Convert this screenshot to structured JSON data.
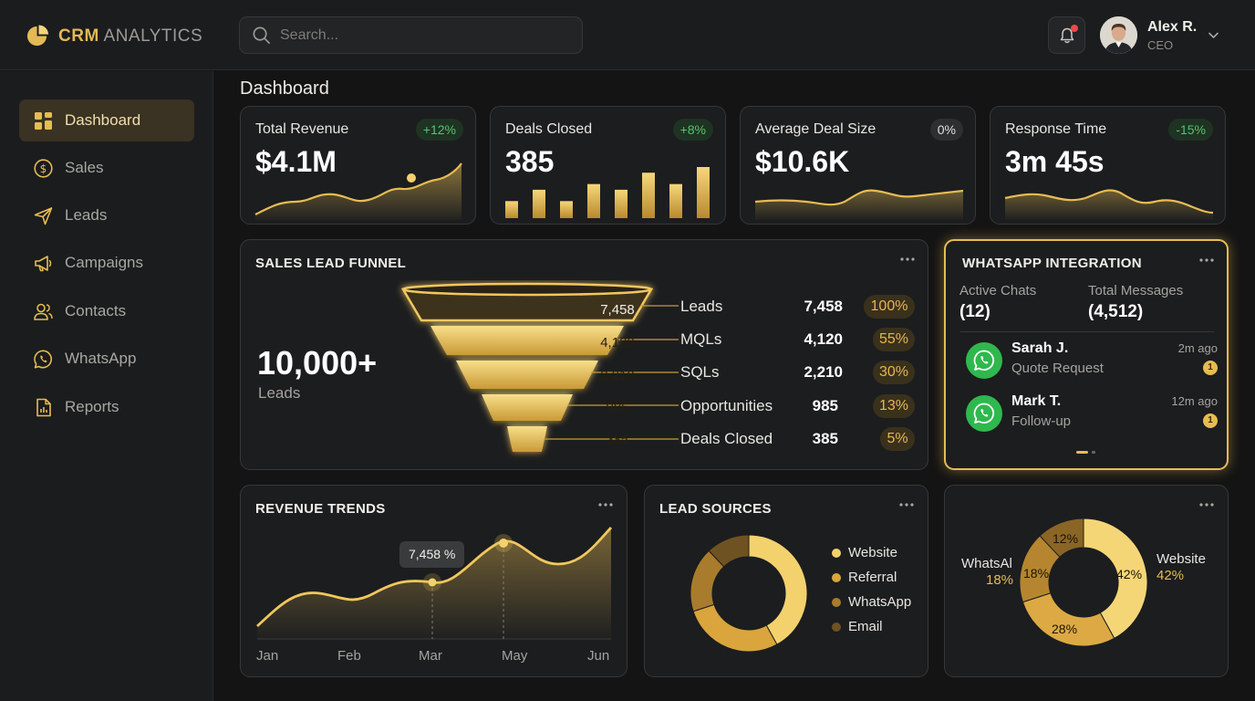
{
  "app": {
    "logo_bold": "CRM",
    "logo_light": "ANALYTICS",
    "accent": "#e6bc52"
  },
  "header": {
    "search_placeholder": "Search...",
    "user": {
      "name": "Alex R.",
      "role": "CEO"
    },
    "icons": [
      "search-icon",
      "bell-icon",
      "avatar",
      "chevron-down-icon"
    ]
  },
  "sidebar": {
    "items": [
      {
        "label": "Dashboard",
        "icon": "grid-icon",
        "active": true
      },
      {
        "label": "Sales",
        "icon": "dollar-icon"
      },
      {
        "label": "Leads",
        "icon": "send-icon"
      },
      {
        "label": "Campaigns",
        "icon": "megaphone-icon"
      },
      {
        "label": "Contacts",
        "icon": "users-icon"
      },
      {
        "label": "WhatsApp",
        "icon": "whatsapp-icon"
      },
      {
        "label": "Reports",
        "icon": "report-icon"
      }
    ]
  },
  "page": {
    "title": "Dashboard"
  },
  "kpis": [
    {
      "label": "Total Revenue",
      "value": "$4.1M",
      "change": "+12%"
    },
    {
      "label": "Deals Closed",
      "value": "385",
      "change": "+8%",
      "bars": [
        3,
        5,
        3,
        6,
        5,
        8,
        6,
        9
      ]
    },
    {
      "label": "Average Deal Size",
      "value": "$10.6K",
      "change": "0%"
    },
    {
      "label": "Response Time",
      "value": "3m 45s",
      "change": "-15%"
    }
  ],
  "funnel": {
    "title": "SALES LEAD FUNNEL",
    "total": "10,000+",
    "total_label": "Leads",
    "stages": [
      {
        "name": "Leads",
        "value": "7,458",
        "pct": "100%"
      },
      {
        "name": "MQLs",
        "value": "4,120",
        "pct": "55%"
      },
      {
        "name": "SQLs",
        "value": "2,210",
        "pct": "30%"
      },
      {
        "name": "Opportunities",
        "value": "985",
        "pct": "13%"
      },
      {
        "name": "Deals Closed",
        "value": "385",
        "pct": "5%"
      }
    ]
  },
  "whatsapp": {
    "title": "WHATSAPP INTEGRATION",
    "active_chats_label": "Active Chats",
    "active_chats_value": "(12)",
    "total_messages_label": "Total Messages",
    "total_messages_value": "(4,512)",
    "chats": [
      {
        "name": "Sarah J.",
        "message": "Quote Request",
        "time": "2m ago",
        "unread": "1"
      },
      {
        "name": "Mark T.",
        "message": "Follow-up",
        "time": "12m ago",
        "unread": "1"
      }
    ]
  },
  "revenue_trends": {
    "title": "REVENUE TRENDS",
    "months": [
      "Jan",
      "Feb",
      "Mar",
      "May",
      "Jun"
    ],
    "tooltip": "7,458 %"
  },
  "lead_sources": {
    "title": "LEAD SOURCES",
    "legend": [
      {
        "label": "Website",
        "color": "#f3d16d"
      },
      {
        "label": "Referral",
        "color": "#d9a53c"
      },
      {
        "label": "WhatsApp",
        "color": "#a87c2c"
      },
      {
        "label": "Email",
        "color": "#6f5222"
      }
    ]
  },
  "source_breakdown": {
    "outer_labels": [
      {
        "label": "WhatsAl",
        "pct": "18%"
      },
      {
        "label": "Website",
        "pct": "42%"
      }
    ],
    "inner": [
      "12%",
      "18%",
      "42%",
      "28%"
    ]
  },
  "chart_data": [
    {
      "type": "line",
      "title": "",
      "x": [
        "Jan",
        "Feb",
        "Mar",
        "May",
        "Jun"
      ],
      "series": [
        {
          "values": [
            2500,
            5200,
            5400,
            7458,
            10500
          ]
        }
      ],
      "annotations": [
        "7,458 %"
      ],
      "grid": false
    },
    {
      "type": "pie",
      "title": "",
      "categories": [
        "Website",
        "Referral",
        "WhatsApp",
        "Email"
      ],
      "values": [
        42,
        28,
        18,
        12
      ]
    },
    {
      "type": "pie",
      "title": "",
      "categories": [
        "Website",
        "Referral",
        "WhatsApp",
        "Email"
      ],
      "values": [
        42,
        28,
        18,
        12
      ]
    },
    {
      "type": "bar",
      "title": "",
      "categories": [
        "1",
        "2",
        "3",
        "4",
        "5",
        "6",
        "7",
        "8"
      ],
      "values": [
        3,
        5,
        3,
        6,
        5,
        8,
        6,
        9
      ]
    }
  ]
}
